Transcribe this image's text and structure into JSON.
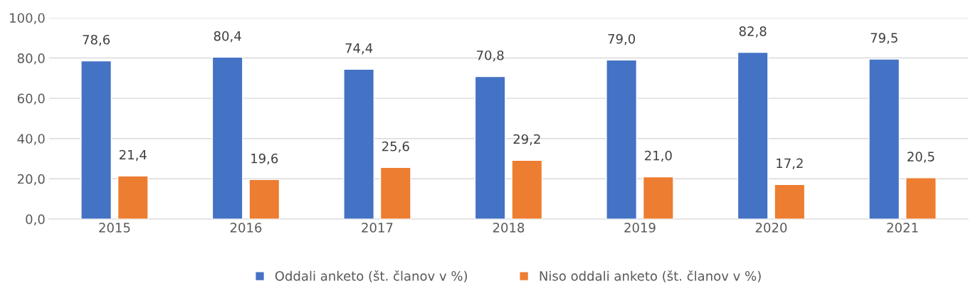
{
  "chart_data": {
    "type": "bar",
    "categories": [
      "2015",
      "2016",
      "2017",
      "2018",
      "2019",
      "2020",
      "2021"
    ],
    "series": [
      {
        "name": "Oddali anketo (št. članov v %)",
        "color": "#4472c4",
        "values": [
          78.6,
          80.4,
          74.4,
          70.8,
          79.0,
          82.8,
          79.5
        ],
        "value_labels": [
          "78,6",
          "80,4",
          "74,4",
          "70,8",
          "79,0",
          "82,8",
          "79,5"
        ]
      },
      {
        "name": "Niso oddali anketo (št. članov v %)",
        "color": "#ed7d31",
        "values": [
          21.4,
          19.6,
          25.6,
          29.2,
          21.0,
          17.2,
          20.5
        ],
        "value_labels": [
          "21,4",
          "19,6",
          "25,6",
          "29,2",
          "21,0",
          "17,2",
          "20,5"
        ]
      }
    ],
    "ylim": [
      0,
      100
    ],
    "yticks": [
      {
        "value": 0,
        "label": "0,0"
      },
      {
        "value": 20,
        "label": "20,0"
      },
      {
        "value": 40,
        "label": "40,0"
      },
      {
        "value": 60,
        "label": "60,0"
      },
      {
        "value": 80,
        "label": "80,0"
      },
      {
        "value": 100,
        "label": "100,0"
      }
    ],
    "grid": "y",
    "legend": "bottom"
  }
}
